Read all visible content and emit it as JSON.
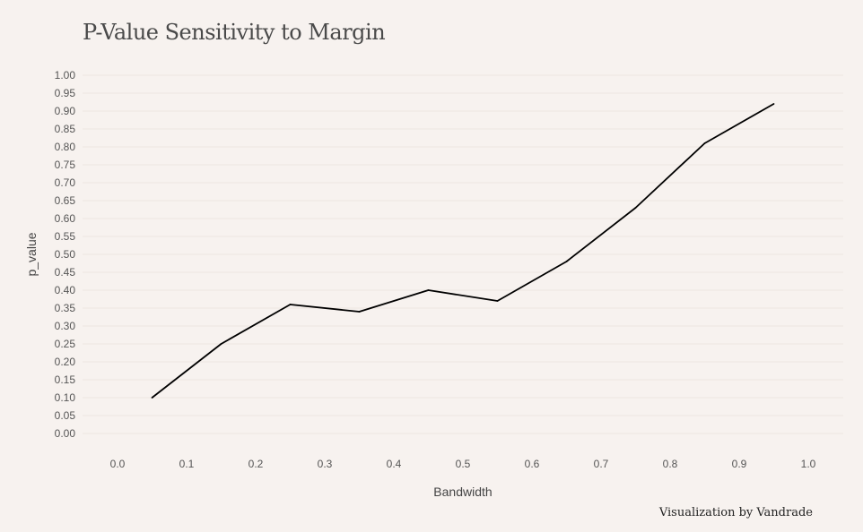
{
  "title": "P-Value Sensitivity to Margin",
  "caption": "Visualization by Vandrade",
  "colors": {
    "background": "#f7f2ef",
    "line": "#000000",
    "grid": "#ece6e2",
    "text": "#555555"
  },
  "chart_data": {
    "type": "line",
    "title": "P-Value Sensitivity to Margin",
    "xlabel": "Bandwidth",
    "ylabel": "p_value",
    "xlim": [
      0.0,
      1.0
    ],
    "ylim": [
      0.0,
      1.0
    ],
    "x_ticks": [
      "0.0",
      "0.1",
      "0.2",
      "0.3",
      "0.4",
      "0.5",
      "0.6",
      "0.7",
      "0.8",
      "0.9",
      "1.0"
    ],
    "y_ticks": [
      "0.00",
      "0.05",
      "0.10",
      "0.15",
      "0.20",
      "0.25",
      "0.30",
      "0.35",
      "0.40",
      "0.45",
      "0.50",
      "0.55",
      "0.60",
      "0.65",
      "0.70",
      "0.75",
      "0.80",
      "0.85",
      "0.90",
      "0.95",
      "1.00"
    ],
    "grid": "horizontal",
    "legend": "none",
    "series": [
      {
        "x": [
          0.05,
          0.15,
          0.25,
          0.35,
          0.45,
          0.55,
          0.65,
          0.75,
          0.85,
          0.95
        ],
        "values": [
          0.1,
          0.25,
          0.36,
          0.34,
          0.4,
          0.37,
          0.48,
          0.63,
          0.81,
          0.92
        ]
      }
    ]
  }
}
